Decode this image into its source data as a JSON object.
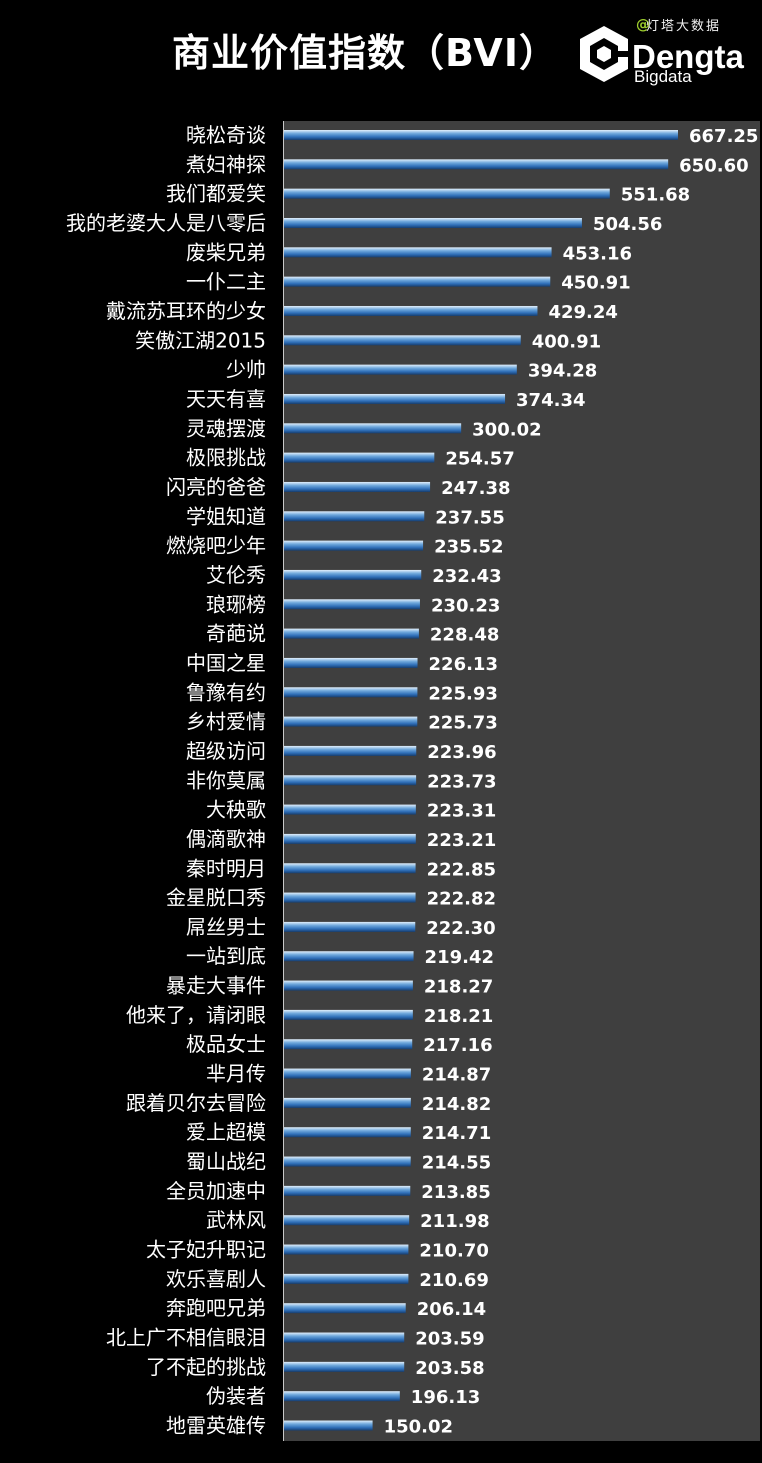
{
  "title": "商业价值指数（BVI）",
  "logo": {
    "brand": "Dengta",
    "sub": "Bigdata",
    "watermark": "灯塔大数据"
  },
  "colors": {
    "background": "#000000",
    "plot_background": "#3f3f3f",
    "bar_light": "#b9d7f5",
    "bar_mid": "#5b9bd5",
    "bar_dark": "#1f4e8c",
    "text": "#ffffff"
  },
  "chart_data": {
    "type": "bar",
    "orientation": "horizontal",
    "title": "商业价值指数（BVI）",
    "xlabel": "",
    "ylabel": "",
    "xlim": [
      0,
      800
    ],
    "grid": false,
    "categories": [
      "晓松奇谈",
      "煮妇神探",
      "我们都爱笑",
      "我的老婆大人是八零后",
      "废柴兄弟",
      "一仆二主",
      "戴流苏耳环的少女",
      "笑傲江湖2015",
      "少帅",
      "天天有喜",
      "灵魂摆渡",
      "极限挑战",
      "闪亮的爸爸",
      "学姐知道",
      "燃烧吧少年",
      "艾伦秀",
      "琅琊榜",
      "奇葩说",
      "中国之星",
      "鲁豫有约",
      "乡村爱情",
      "超级访问",
      "非你莫属",
      "大秧歌",
      "偶滴歌神",
      "秦时明月",
      "金星脱口秀",
      "屌丝男士",
      "一站到底",
      "暴走大事件",
      "他来了，请闭眼",
      "极品女士",
      "芈月传",
      "跟着贝尔去冒险",
      "爱上超模",
      "蜀山战纪",
      "全员加速中",
      "武林风",
      "太子妃升职记",
      "欢乐喜剧人",
      "奔跑吧兄弟",
      "北上广不相信眼泪",
      "了不起的挑战",
      "伪装者",
      "地雷英雄传"
    ],
    "values": [
      667.25,
      650.6,
      551.68,
      504.56,
      453.16,
      450.91,
      429.24,
      400.91,
      394.28,
      374.34,
      300.02,
      254.57,
      247.38,
      237.55,
      235.52,
      232.43,
      230.23,
      228.48,
      226.13,
      225.93,
      225.73,
      223.96,
      223.73,
      223.31,
      223.21,
      222.85,
      222.82,
      222.3,
      219.42,
      218.27,
      218.21,
      217.16,
      214.87,
      214.82,
      214.71,
      214.55,
      213.85,
      211.98,
      210.7,
      210.69,
      206.14,
      203.59,
      203.58,
      196.13,
      150.02
    ],
    "value_labels": [
      "667.25",
      "650.60",
      "551.68",
      "504.56",
      "453.16",
      "450.91",
      "429.24",
      "400.91",
      "394.28",
      "374.34",
      "300.02",
      "254.57",
      "247.38",
      "237.55",
      "235.52",
      "232.43",
      "230.23",
      "228.48",
      "226.13",
      "225.93",
      "225.73",
      "223.96",
      "223.73",
      "223.31",
      "223.21",
      "222.85",
      "222.82",
      "222.30",
      "219.42",
      "218.27",
      "218.21",
      "217.16",
      "214.87",
      "214.82",
      "214.71",
      "214.55",
      "213.85",
      "211.98",
      "210.70",
      "210.69",
      "206.14",
      "203.59",
      "203.58",
      "196.13",
      "150.02"
    ]
  }
}
